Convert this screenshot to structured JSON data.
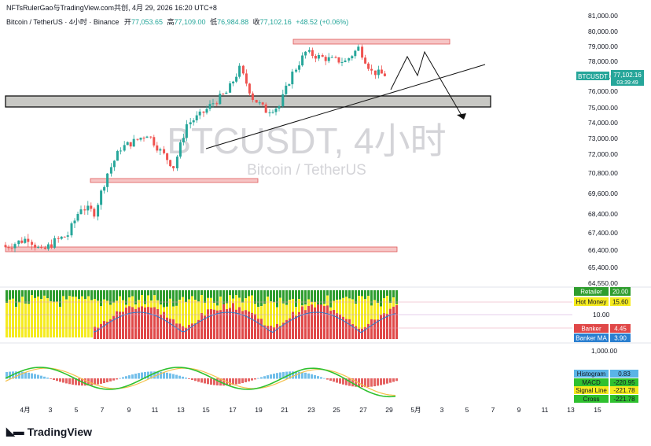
{
  "header": {
    "author_line": "NFTsRulerGao与TradingView.com共创, 4月 29, 2026 16:20 UTC+8",
    "symbol": "Bitcoin / TetherUS · 4小时 · Binance",
    "open_label": "开",
    "open": "77,053.65",
    "high_label": "高",
    "high": "77,109.00",
    "low_label": "低",
    "low": "76,984.88",
    "close_label": "收",
    "close": "77,102.16",
    "change": "+48.52 (+0.06%)"
  },
  "watermark": {
    "title": "BTCUSDT, 4小时",
    "subtitle": "Bitcoin / TetherUS"
  },
  "price_badge": {
    "symbol": "BTCUSDT",
    "price": "77,102.16",
    "countdown": "03:39:49"
  },
  "colors": {
    "up": "#26a69a",
    "down": "#ef5350",
    "zone_red": "#f6c5c5",
    "zone_gray": "#c8c8c4",
    "retailer": "#2e9d2e",
    "hot_money": "#f5eb1f",
    "banker": "#e04848",
    "banker_ma": "#2a7fd0"
  },
  "price_axis": [
    "81,000.00",
    "80,000.00",
    "79,000.00",
    "78,000.00",
    "77,000.00",
    "76,000.00",
    "75,000.00",
    "74,000.00",
    "73,000.00",
    "72,000.00",
    "70,800.00",
    "69,600.00",
    "68,400.00",
    "67,400.00",
    "66,400.00",
    "65,400.00",
    "64,550.00"
  ],
  "indicator1": {
    "labels": [
      {
        "name": "Retailer",
        "value": "20.00"
      },
      {
        "name": "Hot Money",
        "value": "15.60"
      },
      {
        "name": "Banker",
        "value": "4.45"
      },
      {
        "name": "Banker MA",
        "value": "3.90"
      }
    ],
    "axis_value": "10.00"
  },
  "indicator2": {
    "axis_value": "1,000.00",
    "labels": [
      {
        "name": "Histogram",
        "value": "0.83"
      },
      {
        "name": "MACD",
        "value": "-220.95"
      },
      {
        "name": "Signal Line",
        "value": "-221.78"
      },
      {
        "name": "Cross",
        "value": "-221.78"
      }
    ]
  },
  "time_axis": [
    "4月",
    "3",
    "5",
    "7",
    "9",
    "11",
    "13",
    "15",
    "17",
    "19",
    "21",
    "23",
    "25",
    "27",
    "29",
    "5月",
    "3",
    "5",
    "7",
    "9",
    "11",
    "13",
    "15"
  ],
  "brand": "TradingView",
  "chart_data": {
    "type": "candlestick",
    "title": "BTCUSDT, 4小时",
    "subtitle": "Bitcoin / TetherUS",
    "price_close_path": [
      {
        "day": 1,
        "close": 66800
      },
      {
        "day": 2,
        "close": 67100
      },
      {
        "day": 3,
        "close": 66300
      },
      {
        "day": 4,
        "close": 66900
      },
      {
        "day": 5,
        "close": 67300
      },
      {
        "day": 6,
        "close": 68800
      },
      {
        "day": 7,
        "close": 68500
      },
      {
        "day": 8,
        "close": 70800
      },
      {
        "day": 9,
        "close": 72400
      },
      {
        "day": 10,
        "close": 72800
      },
      {
        "day": 11,
        "close": 73300
      },
      {
        "day": 12,
        "close": 72200
      },
      {
        "day": 13,
        "close": 71200
      },
      {
        "day": 14,
        "close": 73900
      },
      {
        "day": 15,
        "close": 74500
      },
      {
        "day": 16,
        "close": 75300
      },
      {
        "day": 17,
        "close": 75900
      },
      {
        "day": 18,
        "close": 77500
      },
      {
        "day": 19,
        "close": 75600
      },
      {
        "day": 20,
        "close": 74800
      },
      {
        "day": 21,
        "close": 75100
      },
      {
        "day": 22,
        "close": 77200
      },
      {
        "day": 23,
        "close": 78600
      },
      {
        "day": 24,
        "close": 78300
      },
      {
        "day": 25,
        "close": 78100
      },
      {
        "day": 26,
        "close": 78000
      },
      {
        "day": 27,
        "close": 78900
      },
      {
        "day": 28,
        "close": 77300
      },
      {
        "day": 29,
        "close": 77102
      }
    ],
    "zones": [
      {
        "type": "resistance",
        "low": 79100,
        "high": 79400
      },
      {
        "type": "support",
        "low": 75200,
        "high": 75700
      },
      {
        "type": "support",
        "low": 70800,
        "high": 71000
      },
      {
        "type": "support",
        "low": 66400,
        "high": 66600
      }
    ],
    "ylim": [
      64550,
      81000
    ]
  }
}
